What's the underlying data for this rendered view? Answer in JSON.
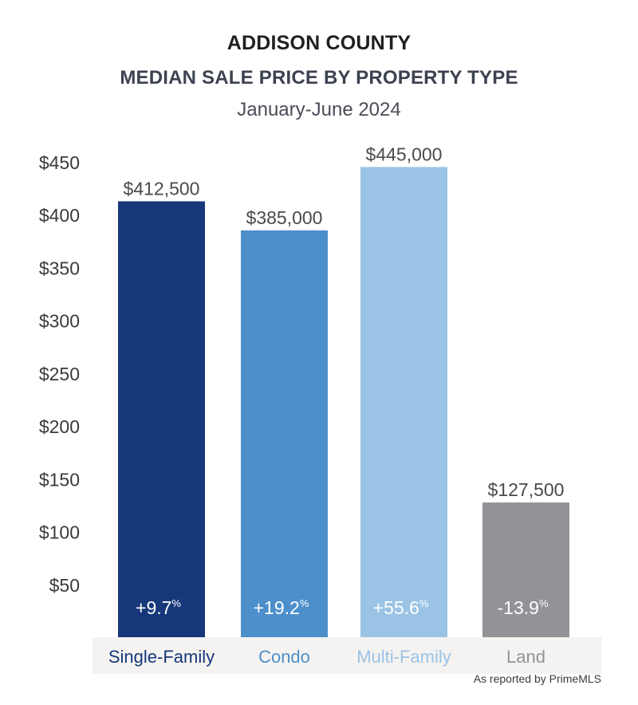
{
  "title_line1": "ADDISON COUNTY",
  "title_line2": "MEDIAN SALE PRICE BY PROPERTY TYPE",
  "subtitle": "January-June 2024",
  "source_note": "As reported by PrimeMLS",
  "chart_data": {
    "type": "bar",
    "categories": [
      "Single-Family",
      "Condo",
      "Multi-Family",
      "Land"
    ],
    "values": [
      412.5,
      385,
      445,
      127.5
    ],
    "value_labels": [
      "$412,500",
      "$385,000",
      "$445,000",
      "$127,500"
    ],
    "change_values": [
      "+9.7",
      "+19.2",
      "+55.6",
      "-13.9"
    ],
    "change_unit": "%",
    "bar_colors": [
      "#16387a",
      "#4d8fcb",
      "#9bc3e6",
      "#919397"
    ],
    "category_label_colors": [
      "#16387a",
      "#4d8fcb",
      "#9bc3e6",
      "#919397"
    ],
    "y_ticks": [
      50,
      100,
      150,
      200,
      250,
      300,
      350,
      400,
      450
    ],
    "y_tick_labels": [
      "$50",
      "$100",
      "$150",
      "$200",
      "$250",
      "$300",
      "$350",
      "$400",
      "$450"
    ],
    "ylim": [
      0,
      450
    ],
    "grid": false,
    "category_band_color": "#f4f3f1"
  }
}
